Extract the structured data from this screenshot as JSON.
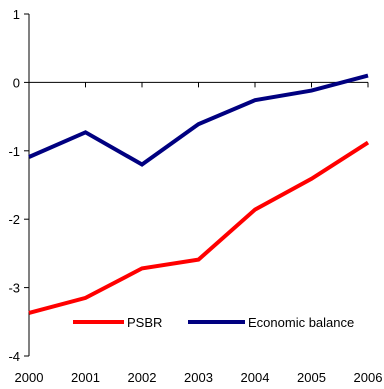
{
  "chart_data": {
    "type": "line",
    "title": "",
    "xlabel": "",
    "ylabel": "",
    "categories": [
      "2000",
      "2001",
      "2002",
      "2003",
      "2004",
      "2005",
      "2006"
    ],
    "ylim": [
      -4,
      1
    ],
    "y_ticks": [
      1,
      0,
      -1,
      -2,
      -3,
      -4
    ],
    "y_tick_labels": [
      "1",
      "0",
      "-1",
      "-2",
      "-3",
      "-4"
    ],
    "grid": false,
    "legend_position": "bottom-right",
    "series": [
      {
        "name": "PSBR",
        "color": "#ff0000",
        "values": [
          -3.37,
          -3.15,
          -2.72,
          -2.59,
          -1.86,
          -1.41,
          -0.88
        ]
      },
      {
        "name": "Economic balance",
        "color": "#000080",
        "values": [
          -1.09,
          -0.73,
          -1.2,
          -0.61,
          -0.26,
          -0.12,
          0.1
        ]
      }
    ]
  }
}
